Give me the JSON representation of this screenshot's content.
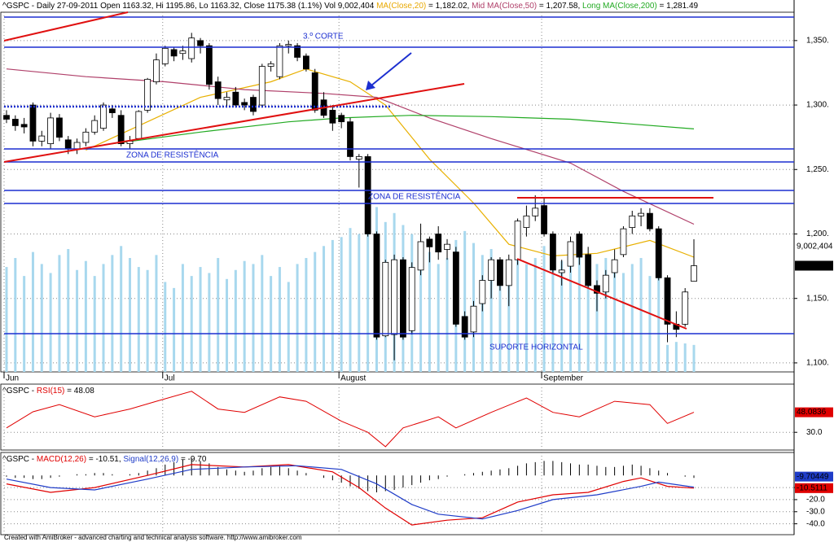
{
  "chart_data": {
    "type": "candlestick",
    "header_parts": [
      {
        "text": "^GSPC - Daily 27-09-2011 Open 1163.32, Hi 1195.86, Lo 1163.32, Close 1175.38 (1.1%) Vol 9,002,404 ",
        "color": "#000000"
      },
      {
        "text": "MA(Close,20)",
        "color": "#e8a800"
      },
      {
        "text": " = 1,182.02, ",
        "color": "#000000"
      },
      {
        "text": "Mid MA(Close,50)",
        "color": "#b0406a"
      },
      {
        "text": " = 1,207.58, ",
        "color": "#000000"
      },
      {
        "text": "Long MA(Close,200)",
        "color": "#22aa22"
      },
      {
        "text": " = 1,281.49",
        "color": "#000000"
      }
    ],
    "annotations": [
      "3.º CORTE",
      "ZONA DE RESISTÊNCIA",
      "ZONA DE RESISTÊNCIA",
      "SUPORTE HORIZONTAL"
    ],
    "categories": [
      "Jun",
      null,
      null,
      null,
      null,
      null,
      null,
      null,
      null,
      null,
      null,
      null,
      null,
      null,
      null,
      null,
      null,
      null,
      "Jul",
      null,
      null,
      null,
      null,
      null,
      null,
      null,
      null,
      null,
      null,
      null,
      null,
      null,
      null,
      null,
      null,
      null,
      null,
      null,
      "August",
      null,
      null,
      null,
      null,
      null,
      null,
      null,
      null,
      null,
      null,
      null,
      null,
      null,
      null,
      null,
      null,
      null,
      null,
      null,
      null,
      null,
      null,
      "September",
      null,
      null,
      null,
      null,
      null,
      null,
      null,
      null,
      null,
      null,
      null,
      null,
      null,
      null,
      null,
      null,
      null
    ],
    "open": [
      1292,
      1289,
      1285,
      1300,
      1272,
      1270,
      1290,
      1273,
      1266,
      1271,
      1279,
      1282,
      1297,
      1292,
      1270,
      1274,
      1296,
      1318,
      1332,
      1343,
      1340,
      1336,
      1350,
      1346,
      1318,
      1304,
      1310,
      1302,
      1306,
      1300,
      1330,
      1322,
      1346,
      1346,
      1338,
      1325,
      1304,
      1296,
      1292,
      1287,
      1258,
      1260,
      1200,
      1121,
      1122,
      1180,
      1125,
      1172,
      1196,
      1200,
      1188,
      1186,
      1136,
      1124,
      1146,
      1164,
      1180,
      1160,
      1180,
      1205,
      1214,
      1222,
      1200,
      1170,
      1175,
      1200,
      1184,
      1160,
      1155,
      1170,
      1184,
      1205,
      1214,
      1216,
      1204,
      1166,
      1130,
      1130,
      1163.32
    ],
    "high": [
      1296,
      1292,
      1290,
      1302,
      1280,
      1294,
      1293,
      1276,
      1274,
      1282,
      1292,
      1302,
      1300,
      1296,
      1276,
      1296,
      1321,
      1340,
      1346,
      1345,
      1346,
      1356,
      1352,
      1348,
      1322,
      1310,
      1314,
      1305,
      1308,
      1332,
      1334,
      1348,
      1350,
      1348,
      1340,
      1328,
      1310,
      1300,
      1294,
      1290,
      1262,
      1262,
      1202,
      1180,
      1184,
      1182,
      1178,
      1208,
      1198,
      1206,
      1196,
      1190,
      1140,
      1148,
      1168,
      1182,
      1182,
      1184,
      1212,
      1222,
      1230,
      1228,
      1202,
      1180,
      1198,
      1202,
      1190,
      1164,
      1172,
      1188,
      1206,
      1218,
      1220,
      1220,
      1206,
      1168,
      1140,
      1158,
      1195.86
    ],
    "low": [
      1286,
      1280,
      1278,
      1268,
      1268,
      1266,
      1272,
      1262,
      1262,
      1268,
      1277,
      1280,
      1290,
      1268,
      1266,
      1273,
      1294,
      1316,
      1330,
      1334,
      1335,
      1333,
      1340,
      1312,
      1300,
      1298,
      1298,
      1296,
      1292,
      1298,
      1326,
      1320,
      1340,
      1334,
      1326,
      1294,
      1290,
      1280,
      1282,
      1257,
      1236,
      1198,
      1118,
      1120,
      1102,
      1118,
      1122,
      1168,
      1178,
      1180,
      1180,
      1128,
      1118,
      1120,
      1140,
      1150,
      1156,
      1144,
      1176,
      1198,
      1210,
      1198,
      1170,
      1160,
      1170,
      1176,
      1158,
      1140,
      1150,
      1166,
      1182,
      1200,
      1206,
      1202,
      1164,
      1116,
      1120,
      1128,
      1163.32
    ],
    "close": [
      1289,
      1284,
      1283,
      1272,
      1276,
      1290,
      1275,
      1266,
      1271,
      1279,
      1288,
      1300,
      1294,
      1270,
      1272,
      1295,
      1320,
      1335,
      1344,
      1338,
      1342,
      1352,
      1346,
      1316,
      1305,
      1306,
      1300,
      1300,
      1295,
      1330,
      1332,
      1346,
      1347,
      1337,
      1328,
      1296,
      1292,
      1286,
      1287,
      1260,
      1260,
      1200,
      1120,
      1178,
      1180,
      1120,
      1174,
      1194,
      1190,
      1186,
      1192,
      1130,
      1120,
      1144,
      1164,
      1180,
      1160,
      1180,
      1210,
      1214,
      1220,
      1200,
      1172,
      1172,
      1194,
      1182,
      1160,
      1154,
      1168,
      1180,
      1204,
      1214,
      1216,
      1204,
      1166,
      1130,
      1126,
      1155,
      1175.38
    ],
    "volume": [
      35000000.0,
      38000000.0,
      32000000.0,
      40000000.0,
      36000000.0,
      33000000.0,
      39000000.0,
      41000000.0,
      34000000.0,
      37000000.0,
      32000000.0,
      36000000.0,
      39000000.0,
      42000000.0,
      38000000.0,
      35000000.0,
      34000000.0,
      39000000.0,
      30000000.0,
      28000000.0,
      36000000.0,
      32000000.0,
      35000000.0,
      33000000.0,
      38000000.0,
      31000000.0,
      34000000.0,
      37000000.0,
      36000000.0,
      39000000.0,
      32000000.0,
      35000000.0,
      30000000.0,
      36000000.0,
      38000000.0,
      40000000.0,
      42000000.0,
      44000000.0,
      45000000.0,
      48000000.0,
      46000000.0,
      52000000.0,
      55000000.0,
      50000000.0,
      53000000.0,
      49000000.0,
      46000000.0,
      42000000.0,
      40000000.0,
      36000000.0,
      38000000.0,
      44000000.0,
      47000000.0,
      43000000.0,
      39000000.0,
      41000000.0,
      37000000.0,
      35000000.0,
      39000000.0,
      36000000.0,
      38000000.0,
      42000000.0,
      35000000.0,
      37000000.0,
      39000000.0,
      40000000.0,
      34000000.0,
      36000000.0,
      38000000.0,
      35000000.0,
      33000000.0,
      36000000.0,
      38000000.0,
      32000000.0,
      36000000.0,
      9000000.0,
      10000000.0,
      9500000.0,
      9002404
    ],
    "volume_color": "#a8d8ee",
    "vlim": [
      0,
      120000000.0
    ],
    "ylim": [
      1093,
      1372
    ],
    "yticks": [
      {
        "value": 1100,
        "label": "1,100."
      },
      {
        "value": 1150,
        "label": "1,150."
      },
      {
        "value": 1200,
        "label": "1,200."
      },
      {
        "value": 1250,
        "label": "1,250."
      },
      {
        "value": 1300,
        "label": "1,300."
      },
      {
        "value": 1350,
        "label": "1,350."
      }
    ],
    "grid": true,
    "moving_averages": [
      {
        "name": "MA(Close,20)",
        "color": "#e8b000",
        "x": [
          9,
          22,
          30,
          34,
          39,
          43,
          48,
          53,
          57,
          62,
          67,
          73,
          78
        ],
        "values": [
          1265,
          1306,
          1318,
          1328,
          1318,
          1300,
          1258,
          1224,
          1192,
          1183,
          1185,
          1195,
          1182.02
        ]
      },
      {
        "name": "Mid MA(Close,50)",
        "color": "#b0406a",
        "x": [
          0,
          9,
          18,
          27,
          36,
          42,
          48,
          55,
          64,
          70,
          78
        ],
        "values": [
          1328,
          1322,
          1318,
          1312,
          1309,
          1306,
          1290,
          1274,
          1255,
          1233,
          1207.58
        ]
      },
      {
        "name": "Long MA(Close,200)",
        "color": "#22aa22",
        "x": [
          12,
          22,
          32,
          38,
          46,
          55,
          64,
          78
        ],
        "values": [
          1270,
          1279,
          1287,
          1290,
          1292,
          1291,
          1289,
          1281.49
        ]
      }
    ],
    "last_labels": {
      "volume": "9,002,404",
      "close": "1,175.38",
      "rsi": "48.0836",
      "macd": "-10.5111",
      "signal": "-9.70449"
    },
    "rsi": {
      "label_parts": [
        {
          "text": "^GSPC - ",
          "color": "#000000"
        },
        {
          "text": "RSI(15)",
          "color": "#e00000"
        },
        {
          "text": " = 48.08",
          "color": "#000000"
        }
      ],
      "color": "#e00000",
      "ylim": [
        14,
        73.5
      ],
      "yticks": [
        {
          "value": 30,
          "label": "30.0"
        }
      ],
      "x": [
        0,
        3,
        6,
        10,
        14,
        17,
        21,
        24,
        27,
        31,
        34,
        38,
        41,
        43,
        45,
        49,
        51,
        55,
        59,
        62,
        65,
        69,
        73,
        75,
        78
      ],
      "values": [
        34,
        48.5,
        55,
        44,
        51,
        58,
        67,
        51,
        48,
        62,
        58,
        40,
        30,
        17,
        34,
        44,
        34,
        48,
        61,
        48,
        44,
        58,
        55,
        38,
        48.08
      ]
    },
    "macd": {
      "label_parts": [
        {
          "text": "^GSPC - ",
          "color": "#000000"
        },
        {
          "text": "MACD(12,26)",
          "color": "#e00000"
        },
        {
          "text": " = -10.51, ",
          "color": "#000000"
        },
        {
          "text": "Signal(12,26,9)",
          "color": "#1f3cc8"
        },
        {
          "text": " = -9.70",
          "color": "#000000"
        }
      ],
      "ylim": [
        -49,
        19
      ],
      "yticks": [
        {
          "value": -10,
          "label": "-10.0"
        },
        {
          "value": -20,
          "label": "-20.0"
        },
        {
          "value": -30,
          "label": "-30.0"
        },
        {
          "value": -40,
          "label": "-40.0"
        }
      ],
      "macd_color": "#e00000",
      "signal_color": "#1f3cc8",
      "macd_x": [
        0,
        5,
        10,
        16,
        21,
        27,
        32,
        37,
        40,
        43,
        46,
        50,
        54,
        58,
        62,
        66,
        70,
        72,
        75,
        78
      ],
      "macd_values": [
        -7,
        -14,
        -10,
        0,
        9,
        7,
        9,
        3,
        -10,
        -27,
        -41,
        -37,
        -35,
        -22,
        -16,
        -14,
        -5,
        -2,
        -9,
        -10.51
      ],
      "signal_x": [
        0,
        5,
        10,
        16,
        21,
        27,
        33,
        38,
        42,
        46,
        49,
        54,
        58,
        62,
        67,
        72,
        74,
        78
      ],
      "signal_values": [
        -3,
        -10,
        -12,
        -3,
        5,
        7,
        8,
        5,
        -7,
        -24,
        -32,
        -36,
        -29,
        -20,
        -16,
        -9,
        -5.5,
        -9.7
      ],
      "histogram": [
        -1,
        -2,
        -2,
        -3,
        -3,
        -2,
        -1,
        0,
        1,
        1,
        2,
        2,
        1,
        0,
        1,
        2,
        4,
        6,
        9,
        11,
        13,
        14,
        12,
        10,
        7,
        5,
        4,
        3,
        4,
        6,
        7,
        8,
        6,
        4,
        2,
        0,
        -2,
        -4,
        -6,
        -9,
        -11,
        -13,
        -14,
        -13,
        -12,
        -10,
        -8,
        -6,
        -4,
        -3,
        -1,
        0,
        1,
        2,
        3,
        4,
        5,
        6,
        8,
        10,
        11,
        12,
        12,
        11,
        10,
        9,
        9,
        8,
        7,
        7,
        8,
        9,
        8,
        6,
        4,
        2,
        0,
        -1,
        -2
      ]
    },
    "footer": "Created with AmiBroker - advanced charting and technical analysis software. http://www.amibroker.com"
  }
}
